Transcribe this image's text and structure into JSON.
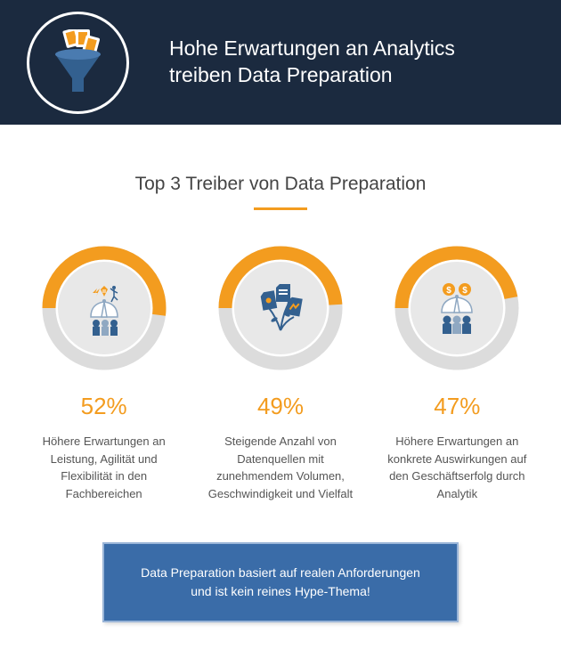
{
  "header": {
    "title_line1": "Hohe Erwartungen an Analytics",
    "title_line2": "treiben Data Preparation",
    "bg_color": "#1b2a3f",
    "text_color": "#ffffff"
  },
  "section": {
    "title": "Top 3 Treiber von Data Preparation",
    "underline_color": "#f39c1f"
  },
  "palette": {
    "accent": "#f39c1f",
    "track": "#dcdcdc",
    "inner_bg": "#e8e8e8",
    "icon_blue": "#33608f",
    "icon_light": "#8fa8c2"
  },
  "donut": {
    "stroke_width": 15,
    "radius": 62,
    "start_angle": 180
  },
  "drivers": [
    {
      "percent": 52,
      "percent_label": "52%",
      "description": "Höhere Erwartungen an Leistung, Agilität und Flexibilität in den Fachbereichen",
      "icon": "performance"
    },
    {
      "percent": 49,
      "percent_label": "49%",
      "description": "Steigende Anzahl von Datenquellen mit zunehmendem Volumen, Geschwindigkeit und Vielfalt",
      "icon": "sources"
    },
    {
      "percent": 47,
      "percent_label": "47%",
      "description": "Höhere Erwartungen an konkrete Auswirkungen auf den Geschäftserfolg durch Analytik",
      "icon": "money"
    }
  ],
  "callout": {
    "text": "Data Preparation basiert auf realen Anforderungen und ist kein reines Hype-Thema!",
    "bg_color": "#3a6ca8",
    "border_color": "#9ab5d8",
    "text_color": "#ffffff"
  }
}
